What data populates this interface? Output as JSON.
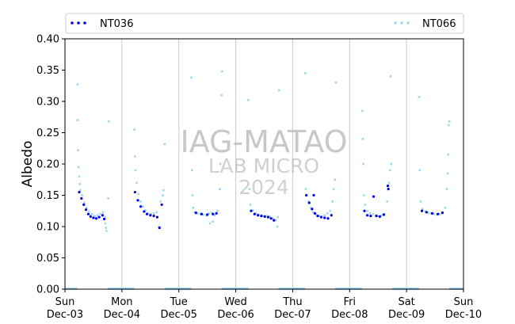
{
  "chart_data": {
    "type": "scatter",
    "ylabel": "Albedo",
    "xlabel": "",
    "ylim": [
      0,
      0.4
    ],
    "yticks": [
      "0.00",
      "0.05",
      "0.10",
      "0.15",
      "0.20",
      "0.25",
      "0.30",
      "0.35",
      "0.40"
    ],
    "xrange_days": [
      "Dec-03",
      "Dec-10"
    ],
    "x_ticks": [
      {
        "day": "Sun",
        "date": "Dec-03"
      },
      {
        "day": "Mon",
        "date": "Dec-04"
      },
      {
        "day": "Tue",
        "date": "Dec-05"
      },
      {
        "day": "Wed",
        "date": "Dec-06"
      },
      {
        "day": "Thu",
        "date": "Dec-07"
      },
      {
        "day": "Fri",
        "date": "Dec-08"
      },
      {
        "day": "Sat",
        "date": "Dec-09"
      },
      {
        "day": "Sun",
        "date": "Dec-10"
      }
    ],
    "grid": "vertical at day boundaries",
    "legend_position": "top, spanning width",
    "series": [
      {
        "name": "NT036",
        "color": "#0000dd",
        "marker": "dot",
        "daytime_points": [
          [
            [
              0.25,
              0.155
            ],
            [
              0.29,
              0.145
            ],
            [
              0.33,
              0.135
            ],
            [
              0.37,
              0.127
            ],
            [
              0.41,
              0.12
            ],
            [
              0.45,
              0.116
            ],
            [
              0.5,
              0.114
            ],
            [
              0.55,
              0.113
            ],
            [
              0.6,
              0.115
            ],
            [
              0.66,
              0.118
            ],
            [
              0.69,
              0.112
            ]
          ],
          [
            [
              0.23,
              0.155
            ],
            [
              0.28,
              0.142
            ],
            [
              0.33,
              0.132
            ],
            [
              0.39,
              0.124
            ],
            [
              0.44,
              0.12
            ],
            [
              0.5,
              0.118
            ],
            [
              0.56,
              0.117
            ],
            [
              0.62,
              0.115
            ],
            [
              0.66,
              0.098
            ],
            [
              0.7,
              0.135
            ]
          ],
          [
            [
              0.3,
              0.122
            ],
            [
              0.4,
              0.12
            ],
            [
              0.5,
              0.119
            ],
            [
              0.6,
              0.12
            ],
            [
              0.66,
              0.121
            ]
          ],
          [
            [
              0.27,
              0.125
            ],
            [
              0.33,
              0.12
            ],
            [
              0.39,
              0.118
            ],
            [
              0.45,
              0.117
            ],
            [
              0.51,
              0.116
            ],
            [
              0.57,
              0.115
            ],
            [
              0.62,
              0.113
            ],
            [
              0.67,
              0.11
            ]
          ],
          [
            [
              0.24,
              0.15
            ],
            [
              0.29,
              0.138
            ],
            [
              0.34,
              0.128
            ],
            [
              0.39,
              0.121
            ],
            [
              0.44,
              0.117
            ],
            [
              0.5,
              0.115
            ],
            [
              0.56,
              0.114
            ],
            [
              0.62,
              0.113
            ],
            [
              0.68,
              0.118
            ],
            [
              0.37,
              0.15
            ]
          ],
          [
            [
              0.26,
              0.125
            ],
            [
              0.31,
              0.118
            ],
            [
              0.37,
              0.117
            ],
            [
              0.42,
              0.148
            ],
            [
              0.47,
              0.117
            ],
            [
              0.53,
              0.116
            ],
            [
              0.6,
              0.119
            ],
            [
              0.67,
              0.165
            ],
            [
              0.68,
              0.16
            ]
          ],
          [
            [
              0.27,
              0.125
            ],
            [
              0.35,
              0.123
            ],
            [
              0.45,
              0.121
            ],
            [
              0.55,
              0.12
            ],
            [
              0.63,
              0.122
            ]
          ]
        ]
      },
      {
        "name": "NT066",
        "color": "#a6d8ee",
        "marker": "dot",
        "daytime_points": [
          [
            [
              0.22,
              0.327
            ],
            [
              0.22,
              0.27
            ],
            [
              0.23,
              0.222
            ],
            [
              0.24,
              0.195
            ],
            [
              0.25,
              0.18
            ],
            [
              0.26,
              0.168
            ],
            [
              0.27,
              0.158
            ],
            [
              0.3,
              0.15
            ],
            [
              0.34,
              0.138
            ],
            [
              0.38,
              0.13
            ],
            [
              0.42,
              0.124
            ],
            [
              0.47,
              0.12
            ],
            [
              0.52,
              0.117
            ],
            [
              0.57,
              0.118
            ],
            [
              0.62,
              0.12
            ],
            [
              0.67,
              0.123
            ],
            [
              0.7,
              0.115
            ],
            [
              0.71,
              0.105
            ],
            [
              0.72,
              0.098
            ],
            [
              0.73,
              0.093
            ],
            [
              0.77,
              0.268
            ],
            [
              0.76,
              0.145
            ]
          ],
          [
            [
              0.22,
              0.255
            ],
            [
              0.23,
              0.212
            ],
            [
              0.24,
              0.19
            ],
            [
              0.26,
              0.17
            ],
            [
              0.29,
              0.152
            ],
            [
              0.33,
              0.14
            ],
            [
              0.37,
              0.132
            ],
            [
              0.41,
              0.126
            ],
            [
              0.46,
              0.121
            ],
            [
              0.51,
              0.12
            ],
            [
              0.56,
              0.121
            ],
            [
              0.61,
              0.123
            ],
            [
              0.65,
              0.1
            ],
            [
              0.68,
              0.14
            ],
            [
              0.72,
              0.15
            ],
            [
              0.73,
              0.158
            ],
            [
              0.75,
              0.232
            ]
          ],
          [
            [
              0.22,
              0.338
            ],
            [
              0.23,
              0.19
            ],
            [
              0.24,
              0.15
            ],
            [
              0.25,
              0.13
            ],
            [
              0.28,
              0.123
            ],
            [
              0.33,
              0.121
            ],
            [
              0.38,
              0.12
            ],
            [
              0.43,
              0.119
            ],
            [
              0.48,
              0.118
            ],
            [
              0.53,
              0.121
            ],
            [
              0.58,
              0.122
            ],
            [
              0.63,
              0.118
            ],
            [
              0.68,
              0.125
            ],
            [
              0.72,
              0.16
            ],
            [
              0.73,
              0.2
            ],
            [
              0.75,
              0.31
            ],
            [
              0.76,
              0.348
            ],
            [
              0.55,
              0.105
            ],
            [
              0.6,
              0.108
            ]
          ],
          [
            [
              0.22,
              0.302
            ],
            [
              0.24,
              0.16
            ],
            [
              0.26,
              0.135
            ],
            [
              0.3,
              0.126
            ],
            [
              0.35,
              0.121
            ],
            [
              0.4,
              0.119
            ],
            [
              0.45,
              0.118
            ],
            [
              0.5,
              0.117
            ],
            [
              0.55,
              0.117
            ],
            [
              0.6,
              0.116
            ],
            [
              0.65,
              0.113
            ],
            [
              0.7,
              0.11
            ],
            [
              0.73,
              0.1
            ],
            [
              0.74,
              0.115
            ],
            [
              0.76,
              0.318
            ]
          ],
          [
            [
              0.22,
              0.345
            ],
            [
              0.23,
              0.16
            ],
            [
              0.24,
              0.15
            ],
            [
              0.28,
              0.14
            ],
            [
              0.32,
              0.13
            ],
            [
              0.36,
              0.123
            ],
            [
              0.41,
              0.119
            ],
            [
              0.46,
              0.117
            ],
            [
              0.51,
              0.116
            ],
            [
              0.56,
              0.118
            ],
            [
              0.61,
              0.121
            ],
            [
              0.66,
              0.125
            ],
            [
              0.7,
              0.14
            ],
            [
              0.72,
              0.16
            ],
            [
              0.74,
              0.175
            ],
            [
              0.76,
              0.33
            ]
          ],
          [
            [
              0.22,
              0.285
            ],
            [
              0.23,
              0.24
            ],
            [
              0.24,
              0.2
            ],
            [
              0.25,
              0.15
            ],
            [
              0.27,
              0.135
            ],
            [
              0.31,
              0.125
            ],
            [
              0.36,
              0.121
            ],
            [
              0.41,
              0.12
            ],
            [
              0.46,
              0.118
            ],
            [
              0.51,
              0.117
            ],
            [
              0.56,
              0.118
            ],
            [
              0.61,
              0.12
            ],
            [
              0.66,
              0.14
            ],
            [
              0.69,
              0.17
            ],
            [
              0.71,
              0.19
            ],
            [
              0.72,
              0.34
            ],
            [
              0.73,
              0.2
            ]
          ],
          [
            [
              0.22,
              0.307
            ],
            [
              0.23,
              0.19
            ],
            [
              0.25,
              0.14
            ],
            [
              0.28,
              0.128
            ],
            [
              0.33,
              0.124
            ],
            [
              0.38,
              0.122
            ],
            [
              0.43,
              0.121
            ],
            [
              0.48,
              0.12
            ],
            [
              0.53,
              0.119
            ],
            [
              0.58,
              0.12
            ],
            [
              0.63,
              0.123
            ],
            [
              0.68,
              0.13
            ],
            [
              0.71,
              0.16
            ],
            [
              0.72,
              0.185
            ],
            [
              0.73,
              0.215
            ],
            [
              0.74,
              0.262
            ],
            [
              0.75,
              0.268
            ]
          ]
        ]
      }
    ]
  },
  "watermark": {
    "line1": "IAG-MATAO",
    "line2": "LAB MICRO",
    "line3": "2024"
  }
}
